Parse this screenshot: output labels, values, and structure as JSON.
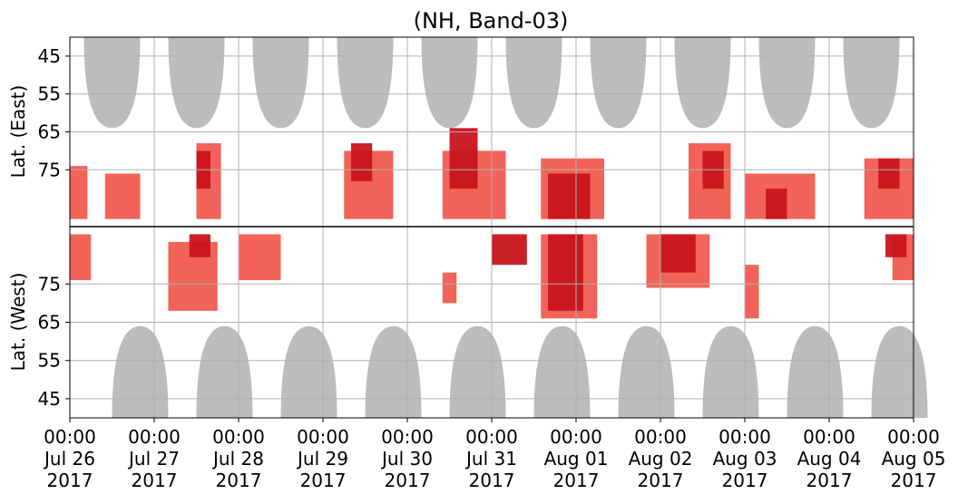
{
  "chart_data": {
    "type": "heatmap",
    "title": "(NH, Band-03)",
    "ylabel_upper": "Lat. (East)",
    "ylabel_lower": "Lat. (West)",
    "x_tick_labels": [
      [
        "00:00",
        "Jul 26",
        "2017"
      ],
      [
        "00:00",
        "Jul 27",
        "2017"
      ],
      [
        "00:00",
        "Jul 28",
        "2017"
      ],
      [
        "00:00",
        "Jul 29",
        "2017"
      ],
      [
        "00:00",
        "Jul 30",
        "2017"
      ],
      [
        "00:00",
        "Jul 31",
        "2017"
      ],
      [
        "00:00",
        "Aug 01",
        "2017"
      ],
      [
        "00:00",
        "Aug 02",
        "2017"
      ],
      [
        "00:00",
        "Aug 03",
        "2017"
      ],
      [
        "00:00",
        "Aug 04",
        "2017"
      ],
      [
        "00:00",
        "Aug 05",
        "2017"
      ]
    ],
    "xlim": [
      "2017-07-26 00:00",
      "2017-08-05 00:00"
    ],
    "y_upper": {
      "ticks": [
        45,
        55,
        65,
        75
      ],
      "lim": [
        90,
        40
      ],
      "label": "Lat. (East)"
    },
    "y_lower": {
      "ticks": [
        75,
        65,
        55,
        45
      ],
      "lim": [
        90,
        40
      ],
      "label": "Lat. (West)"
    },
    "grid": true,
    "colors": {
      "strong": "#c8141c",
      "moderate": "#f0483c",
      "no_data": "#bcbcbc",
      "divider": "#000000"
    },
    "no_data_regions": [
      {
        "hemisphere": "East",
        "center": "2017-07-26 12:00",
        "half_width_hours": 8,
        "lat_min": 64
      },
      {
        "hemisphere": "East",
        "center": "2017-07-27 12:00",
        "half_width_hours": 8,
        "lat_min": 64
      },
      {
        "hemisphere": "East",
        "center": "2017-07-28 12:00",
        "half_width_hours": 8,
        "lat_min": 64
      },
      {
        "hemisphere": "East",
        "center": "2017-07-29 12:00",
        "half_width_hours": 8,
        "lat_min": 64
      },
      {
        "hemisphere": "East",
        "center": "2017-07-30 12:00",
        "half_width_hours": 8,
        "lat_min": 64
      },
      {
        "hemisphere": "East",
        "center": "2017-07-31 12:00",
        "half_width_hours": 8,
        "lat_min": 64
      },
      {
        "hemisphere": "East",
        "center": "2017-08-01 12:00",
        "half_width_hours": 8,
        "lat_min": 64
      },
      {
        "hemisphere": "East",
        "center": "2017-08-02 12:00",
        "half_width_hours": 8,
        "lat_min": 64
      },
      {
        "hemisphere": "East",
        "center": "2017-08-03 12:00",
        "half_width_hours": 8,
        "lat_min": 64
      },
      {
        "hemisphere": "East",
        "center": "2017-08-04 12:00",
        "half_width_hours": 8,
        "lat_min": 64
      },
      {
        "hemisphere": "West",
        "center": "2017-07-26 20:00",
        "half_width_hours": 8,
        "lat_min": 64
      },
      {
        "hemisphere": "West",
        "center": "2017-07-27 20:00",
        "half_width_hours": 8,
        "lat_min": 64
      },
      {
        "hemisphere": "West",
        "center": "2017-07-28 20:00",
        "half_width_hours": 8,
        "lat_min": 64
      },
      {
        "hemisphere": "West",
        "center": "2017-07-29 20:00",
        "half_width_hours": 8,
        "lat_min": 64
      },
      {
        "hemisphere": "West",
        "center": "2017-07-30 20:00",
        "half_width_hours": 8,
        "lat_min": 64
      },
      {
        "hemisphere": "West",
        "center": "2017-07-31 20:00",
        "half_width_hours": 8,
        "lat_min": 64
      },
      {
        "hemisphere": "West",
        "center": "2017-08-01 20:00",
        "half_width_hours": 8,
        "lat_min": 64
      },
      {
        "hemisphere": "West",
        "center": "2017-08-02 20:00",
        "half_width_hours": 8,
        "lat_min": 64
      },
      {
        "hemisphere": "West",
        "center": "2017-08-03 20:00",
        "half_width_hours": 8,
        "lat_min": 64
      },
      {
        "hemisphere": "West",
        "center": "2017-08-04 20:00",
        "half_width_hours": 8,
        "lat_min": 64
      }
    ],
    "activity_patches": [
      {
        "hemisphere": "East",
        "t_start": "2017-07-26 00:00",
        "t_end": "2017-07-26 05:00",
        "lat_range": [
          74,
          88
        ],
        "level": "moderate"
      },
      {
        "hemisphere": "East",
        "t_start": "2017-07-26 10:00",
        "t_end": "2017-07-26 20:00",
        "lat_range": [
          76,
          88
        ],
        "level": "moderate"
      },
      {
        "hemisphere": "East",
        "t_start": "2017-07-27 12:00",
        "t_end": "2017-07-27 16:00",
        "lat_range": [
          70,
          80
        ],
        "level": "strong"
      },
      {
        "hemisphere": "East",
        "t_start": "2017-07-27 12:00",
        "t_end": "2017-07-27 19:00",
        "lat_range": [
          68,
          88
        ],
        "level": "moderate"
      },
      {
        "hemisphere": "East",
        "t_start": "2017-07-29 08:00",
        "t_end": "2017-07-29 14:00",
        "lat_range": [
          68,
          78
        ],
        "level": "strong"
      },
      {
        "hemisphere": "East",
        "t_start": "2017-07-29 06:00",
        "t_end": "2017-07-29 20:00",
        "lat_range": [
          70,
          88
        ],
        "level": "moderate"
      },
      {
        "hemisphere": "East",
        "t_start": "2017-07-30 12:00",
        "t_end": "2017-07-30 20:00",
        "lat_range": [
          64,
          80
        ],
        "level": "strong"
      },
      {
        "hemisphere": "East",
        "t_start": "2017-07-30 10:00",
        "t_end": "2017-07-31 04:00",
        "lat_range": [
          70,
          88
        ],
        "level": "moderate"
      },
      {
        "hemisphere": "East",
        "t_start": "2017-07-31 16:00",
        "t_end": "2017-08-01 04:00",
        "lat_range": [
          76,
          88
        ],
        "level": "strong"
      },
      {
        "hemisphere": "East",
        "t_start": "2017-07-31 14:00",
        "t_end": "2017-08-01 08:00",
        "lat_range": [
          72,
          88
        ],
        "level": "moderate"
      },
      {
        "hemisphere": "East",
        "t_start": "2017-08-02 12:00",
        "t_end": "2017-08-02 18:00",
        "lat_range": [
          70,
          80
        ],
        "level": "strong"
      },
      {
        "hemisphere": "East",
        "t_start": "2017-08-02 08:00",
        "t_end": "2017-08-02 20:00",
        "lat_range": [
          68,
          88
        ],
        "level": "moderate"
      },
      {
        "hemisphere": "East",
        "t_start": "2017-08-03 06:00",
        "t_end": "2017-08-03 12:00",
        "lat_range": [
          80,
          88
        ],
        "level": "strong"
      },
      {
        "hemisphere": "East",
        "t_start": "2017-08-03 00:00",
        "t_end": "2017-08-03 20:00",
        "lat_range": [
          76,
          88
        ],
        "level": "moderate"
      },
      {
        "hemisphere": "East",
        "t_start": "2017-08-04 14:00",
        "t_end": "2017-08-04 20:00",
        "lat_range": [
          72,
          80
        ],
        "level": "strong"
      },
      {
        "hemisphere": "East",
        "t_start": "2017-08-04 10:00",
        "t_end": "2017-08-05 00:00",
        "lat_range": [
          72,
          88
        ],
        "level": "moderate"
      },
      {
        "hemisphere": "West",
        "t_start": "2017-07-26 00:00",
        "t_end": "2017-07-26 06:00",
        "lat_range": [
          76,
          88
        ],
        "level": "moderate"
      },
      {
        "hemisphere": "West",
        "t_start": "2017-07-27 04:00",
        "t_end": "2017-07-27 18:00",
        "lat_range": [
          68,
          86
        ],
        "level": "moderate"
      },
      {
        "hemisphere": "West",
        "t_start": "2017-07-27 10:00",
        "t_end": "2017-07-27 16:00",
        "lat_range": [
          82,
          88
        ],
        "level": "strong"
      },
      {
        "hemisphere": "West",
        "t_start": "2017-07-28 00:00",
        "t_end": "2017-07-28 12:00",
        "lat_range": [
          76,
          88
        ],
        "level": "moderate"
      },
      {
        "hemisphere": "West",
        "t_start": "2017-07-30 10:00",
        "t_end": "2017-07-30 14:00",
        "lat_range": [
          70,
          78
        ],
        "level": "moderate"
      },
      {
        "hemisphere": "West",
        "t_start": "2017-07-31 00:00",
        "t_end": "2017-07-31 10:00",
        "lat_range": [
          80,
          88
        ],
        "level": "strong"
      },
      {
        "hemisphere": "West",
        "t_start": "2017-07-31 16:00",
        "t_end": "2017-08-01 02:00",
        "lat_range": [
          68,
          88
        ],
        "level": "strong"
      },
      {
        "hemisphere": "West",
        "t_start": "2017-07-31 14:00",
        "t_end": "2017-08-01 06:00",
        "lat_range": [
          66,
          88
        ],
        "level": "moderate"
      },
      {
        "hemisphere": "West",
        "t_start": "2017-08-02 00:00",
        "t_end": "2017-08-02 10:00",
        "lat_range": [
          78,
          88
        ],
        "level": "strong"
      },
      {
        "hemisphere": "West",
        "t_start": "2017-08-01 20:00",
        "t_end": "2017-08-02 14:00",
        "lat_range": [
          74,
          88
        ],
        "level": "moderate"
      },
      {
        "hemisphere": "West",
        "t_start": "2017-08-03 00:00",
        "t_end": "2017-08-03 04:00",
        "lat_range": [
          66,
          80
        ],
        "level": "moderate"
      },
      {
        "hemisphere": "West",
        "t_start": "2017-08-04 16:00",
        "t_end": "2017-08-04 22:00",
        "lat_range": [
          82,
          88
        ],
        "level": "strong"
      },
      {
        "hemisphere": "West",
        "t_start": "2017-08-04 18:00",
        "t_end": "2017-08-05 00:00",
        "lat_range": [
          76,
          88
        ],
        "level": "moderate"
      }
    ]
  }
}
